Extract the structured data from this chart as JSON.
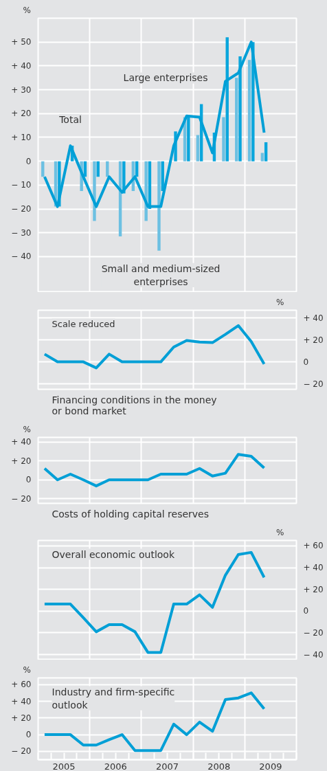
{
  "chart_data": [
    {
      "type": "bar",
      "ylabel": "%",
      "x": [
        2005.125,
        2005.375,
        2005.625,
        2005.875,
        2006.125,
        2006.375,
        2006.625,
        2006.875,
        2007.125,
        2007.375,
        2007.625,
        2007.875,
        2008.125,
        2008.375,
        2008.625,
        2008.875,
        2009.125,
        2009.375
      ],
      "xlim": [
        2005,
        2010
      ],
      "ylim": [
        -55,
        60
      ],
      "yticks": [
        {
          "value": 50,
          "label": "+ 50"
        },
        {
          "value": 40,
          "label": "+ 40"
        },
        {
          "value": 30,
          "label": "+ 30"
        },
        {
          "value": 20,
          "label": "+ 20"
        },
        {
          "value": 10,
          "label": "+ 10"
        },
        {
          "value": 0,
          "label": "0"
        },
        {
          "value": -10,
          "label": "− 10"
        },
        {
          "value": -20,
          "label": "− 20"
        },
        {
          "value": -30,
          "label": "− 30"
        },
        {
          "value": -40,
          "label": "− 40"
        }
      ],
      "tick_labels": "y",
      "grid": true,
      "series": [
        {
          "type": "bar",
          "color": "#6cc0e2",
          "values": [
            -6.5,
            -19,
            null,
            -12.5,
            -25,
            -6.5,
            -31.5,
            -12.5,
            -25,
            -37.5,
            null,
            18.5,
            11,
            null,
            18.5,
            35,
            42.5,
            3.5
          ]
        },
        {
          "type": "bar",
          "color": "#0aa6dc",
          "values": [
            null,
            -19,
            6.5,
            -6.5,
            -6.5,
            null,
            -13.5,
            -6.5,
            -20,
            -12.5,
            12.5,
            18.5,
            24,
            12,
            52,
            44,
            50,
            8
          ]
        },
        {
          "type": "line",
          "color": "#009fd6",
          "values": [
            -6.5,
            -19,
            6.5,
            -6.5,
            -19,
            -6.5,
            -13,
            -6.5,
            -19,
            -19,
            6.5,
            19,
            18.5,
            3.5,
            33.5,
            37,
            50,
            12
          ]
        }
      ],
      "annotations": [
        {
          "text": "Total",
          "x": 2005.625,
          "y": 6.5
        },
        {
          "text": "Large enterprises",
          "x": 2008.125,
          "y": 24
        },
        {
          "text": "Small and medium-sized\nenterprises",
          "x": 2007.375,
          "y": -37.5
        }
      ]
    },
    {
      "type": "line",
      "subtitle": "Scale reduced",
      "title": "Financing conditions in the money\nor bond market",
      "y2label": "%",
      "x": [
        2005.125,
        2005.375,
        2005.625,
        2005.875,
        2006.125,
        2006.375,
        2006.625,
        2006.875,
        2007.125,
        2007.375,
        2007.625,
        2007.875,
        2008.125,
        2008.375,
        2008.625,
        2008.875,
        2009.125,
        2009.375
      ],
      "xlim": [
        2005,
        2010
      ],
      "y2lim": [
        -25,
        47
      ],
      "y2ticks": [
        {
          "value": 40,
          "label": "+ 40"
        },
        {
          "value": 20,
          "label": "+ 20"
        },
        {
          "value": 0,
          "label": "0"
        },
        {
          "value": -20,
          "label": "− 20"
        }
      ],
      "tick_labels": "y",
      "grid": true,
      "series": [
        {
          "color": "#009fd6",
          "axis": "y2",
          "values": [
            7,
            0,
            0,
            0,
            -5.5,
            7,
            0,
            0,
            0,
            0,
            13.5,
            19.5,
            18,
            17.5,
            25,
            33,
            18.5,
            -2
          ]
        }
      ]
    },
    {
      "type": "line",
      "title": "Costs of holding capital reserves",
      "ylabel": "%",
      "x": [
        2005.125,
        2005.375,
        2005.625,
        2005.875,
        2006.125,
        2006.375,
        2006.625,
        2006.875,
        2007.125,
        2007.375,
        2007.625,
        2007.875,
        2008.125,
        2008.375,
        2008.625,
        2008.875,
        2009.125,
        2009.375
      ],
      "xlim": [
        2005,
        2010
      ],
      "ylim": [
        -25,
        45
      ],
      "yticks": [
        {
          "value": 40,
          "label": "+ 40"
        },
        {
          "value": 20,
          "label": "+ 20"
        },
        {
          "value": 0,
          "label": "0"
        },
        {
          "value": -20,
          "label": "− 20"
        }
      ],
      "tick_labels": "y",
      "grid": true,
      "series": [
        {
          "color": "#009fd6",
          "values": [
            12,
            0,
            6,
            0,
            -6.5,
            0,
            0,
            0,
            0,
            6,
            6,
            6,
            12,
            4,
            7,
            27,
            25,
            12.5
          ]
        }
      ]
    },
    {
      "type": "line",
      "title": "Overall economic outlook",
      "y2label": "%",
      "x": [
        2005.125,
        2005.375,
        2005.625,
        2005.875,
        2006.125,
        2006.375,
        2006.625,
        2006.875,
        2007.125,
        2007.375,
        2007.625,
        2007.875,
        2008.125,
        2008.375,
        2008.625,
        2008.875,
        2009.125,
        2009.375
      ],
      "xlim": [
        2005,
        2010
      ],
      "y2lim": [
        -45,
        65
      ],
      "y2ticks": [
        {
          "value": 60,
          "label": "+ 60"
        },
        {
          "value": 40,
          "label": "+ 40"
        },
        {
          "value": 20,
          "label": "+ 20"
        },
        {
          "value": 0,
          "label": "0"
        },
        {
          "value": -20,
          "label": "− 20"
        },
        {
          "value": -40,
          "label": "− 40"
        }
      ],
      "tick_labels": "y",
      "grid": true,
      "series": [
        {
          "color": "#009fd6",
          "axis": "y2",
          "values": [
            6.5,
            6.5,
            6.5,
            -6,
            -19,
            -12.5,
            -12.5,
            -19,
            -38,
            -38,
            6.5,
            6.5,
            15,
            3.5,
            33,
            52,
            54,
            31
          ]
        }
      ]
    },
    {
      "type": "line",
      "title": "Industry and firm-specific\noutlook",
      "ylabel": "%",
      "x": [
        2005.125,
        2005.375,
        2005.625,
        2005.875,
        2006.125,
        2006.375,
        2006.625,
        2006.875,
        2007.125,
        2007.375,
        2007.625,
        2007.875,
        2008.125,
        2008.375,
        2008.625,
        2008.875,
        2009.125,
        2009.375
      ],
      "xlim": [
        2005,
        2010
      ],
      "ylim": [
        -30,
        68
      ],
      "xticks": [
        {
          "value": 2005,
          "label": null
        },
        {
          "value": 2005.25,
          "label": null
        },
        {
          "value": 2005.5,
          "label": "2005"
        },
        {
          "value": 2005.75,
          "label": null
        },
        {
          "value": 2006,
          "label": null
        },
        {
          "value": 2006.25,
          "label": null
        },
        {
          "value": 2006.5,
          "label": "2006"
        },
        {
          "value": 2006.75,
          "label": null
        },
        {
          "value": 2007,
          "label": null
        },
        {
          "value": 2007.25,
          "label": null
        },
        {
          "value": 2007.5,
          "label": "2007"
        },
        {
          "value": 2007.75,
          "label": null
        },
        {
          "value": 2008,
          "label": null
        },
        {
          "value": 2008.25,
          "label": null
        },
        {
          "value": 2008.5,
          "label": "2008"
        },
        {
          "value": 2008.75,
          "label": null
        },
        {
          "value": 2009,
          "label": null
        },
        {
          "value": 2009.25,
          "label": null
        },
        {
          "value": 2009.5,
          "label": "2009"
        },
        {
          "value": 2009.75,
          "label": null
        },
        {
          "value": 2010,
          "label": null
        }
      ],
      "yticks": [
        {
          "value": 60,
          "label": "+ 60"
        },
        {
          "value": 40,
          "label": "+ 40"
        },
        {
          "value": 20,
          "label": "+ 20"
        },
        {
          "value": 0,
          "label": "0"
        },
        {
          "value": -20,
          "label": "− 20"
        }
      ],
      "grid": true,
      "series": [
        {
          "color": "#009fd6",
          "values": [
            0,
            0,
            0,
            -12.5,
            -12.5,
            -6,
            0,
            -19,
            -19,
            -19,
            12.5,
            0,
            15,
            4,
            42,
            44,
            50,
            31
          ]
        }
      ]
    }
  ]
}
